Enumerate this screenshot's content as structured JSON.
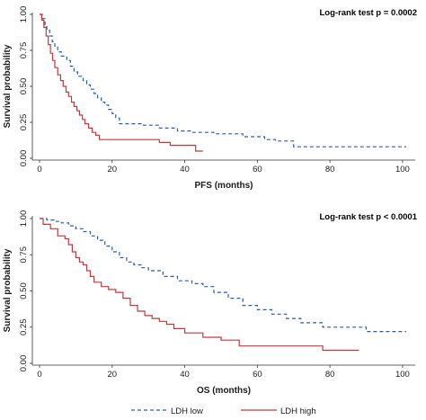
{
  "chart_data": [
    {
      "type": "line",
      "xlabel": "PFS (months)",
      "ylabel": "Survival probability",
      "annotation": "Log-rank test p = 0.0002",
      "xlim": [
        0,
        102
      ],
      "ylim": [
        0,
        1
      ],
      "xticks": [
        "0",
        "20",
        "40",
        "60",
        "80",
        "100"
      ],
      "yticks": [
        "0.00",
        "0.25",
        "0.50",
        "0.75",
        "1.00"
      ],
      "series": [
        {
          "name": "LDH low",
          "color": "#2f5d9e",
          "dash": true,
          "x": [
            0,
            0.8,
            1.5,
            2,
            2.8,
            3.5,
            4.2,
            5,
            6,
            7.5,
            8.5,
            9.5,
            10.5,
            12,
            13,
            14,
            15,
            16,
            17,
            18,
            19,
            20,
            21,
            22,
            28,
            33,
            38,
            42,
            48,
            56,
            62,
            65,
            70,
            75,
            85,
            101
          ],
          "y": [
            1.0,
            0.97,
            0.93,
            0.89,
            0.85,
            0.81,
            0.78,
            0.74,
            0.71,
            0.68,
            0.64,
            0.6,
            0.57,
            0.54,
            0.51,
            0.48,
            0.45,
            0.42,
            0.39,
            0.37,
            0.34,
            0.31,
            0.28,
            0.24,
            0.23,
            0.21,
            0.19,
            0.18,
            0.17,
            0.15,
            0.13,
            0.12,
            0.08,
            0.08,
            0.08,
            0.08
          ]
        },
        {
          "name": "LDH high",
          "color": "#c23a3f",
          "dash": false,
          "x": [
            0,
            0.6,
            1.2,
            1.8,
            2.4,
            3,
            3.6,
            4.2,
            5,
            5.8,
            6.5,
            7.3,
            8,
            8.8,
            9.5,
            10.3,
            11,
            11.8,
            12.5,
            13.5,
            14.5,
            15.5,
            16.5,
            22,
            30,
            33,
            36,
            40,
            43,
            45
          ],
          "y": [
            1.0,
            0.96,
            0.91,
            0.85,
            0.79,
            0.73,
            0.68,
            0.63,
            0.58,
            0.54,
            0.5,
            0.46,
            0.43,
            0.39,
            0.36,
            0.33,
            0.3,
            0.27,
            0.24,
            0.21,
            0.18,
            0.16,
            0.13,
            0.13,
            0.13,
            0.11,
            0.09,
            0.09,
            0.05,
            0.05
          ]
        }
      ]
    },
    {
      "type": "line",
      "xlabel": "OS (months)",
      "ylabel": "Survival probability",
      "annotation": "Log-rank test p < 0.0001",
      "xlim": [
        0,
        102
      ],
      "ylim": [
        0,
        1
      ],
      "xticks": [
        "0",
        "20",
        "40",
        "60",
        "80",
        "100"
      ],
      "yticks": [
        "0.00",
        "0.25",
        "0.50",
        "0.75",
        "1.00"
      ],
      "series": [
        {
          "name": "LDH low",
          "color": "#2f5d9e",
          "dash": true,
          "x": [
            0,
            2,
            4,
            6,
            8,
            10,
            12,
            14,
            16,
            18,
            20,
            22,
            24,
            26,
            28,
            30,
            34,
            38,
            42,
            45,
            48,
            52,
            56,
            60,
            64,
            68,
            72,
            78,
            85,
            90,
            101
          ],
          "y": [
            1.0,
            0.99,
            0.98,
            0.97,
            0.95,
            0.93,
            0.91,
            0.88,
            0.85,
            0.81,
            0.77,
            0.73,
            0.7,
            0.68,
            0.66,
            0.64,
            0.6,
            0.57,
            0.55,
            0.53,
            0.49,
            0.45,
            0.4,
            0.37,
            0.34,
            0.31,
            0.28,
            0.25,
            0.25,
            0.22,
            0.22
          ]
        },
        {
          "name": "LDH high",
          "color": "#c23a3f",
          "dash": false,
          "x": [
            0,
            1,
            3,
            5,
            7,
            8,
            9,
            10,
            11,
            12,
            13,
            14,
            15,
            17,
            19,
            21,
            23,
            25,
            27,
            29,
            31,
            33,
            35,
            37,
            40,
            45,
            50,
            55,
            60,
            65,
            70,
            78,
            88
          ],
          "y": [
            1.0,
            0.96,
            0.93,
            0.88,
            0.86,
            0.82,
            0.77,
            0.73,
            0.7,
            0.68,
            0.64,
            0.6,
            0.56,
            0.53,
            0.51,
            0.49,
            0.45,
            0.4,
            0.36,
            0.33,
            0.31,
            0.29,
            0.27,
            0.24,
            0.21,
            0.18,
            0.16,
            0.12,
            0.12,
            0.12,
            0.12,
            0.09,
            0.09
          ]
        }
      ]
    }
  ],
  "legend": {
    "items": [
      {
        "label": "LDH low",
        "color": "#2f5d9e",
        "dash": true
      },
      {
        "label": "LDH high",
        "color": "#c23a3f",
        "dash": false
      }
    ]
  }
}
